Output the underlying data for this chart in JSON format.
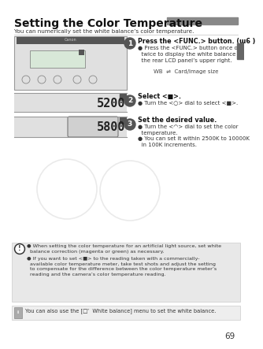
{
  "title": "Setting the Color Temperature",
  "subtitle": "You can numerically set the white balance’s color temperature.",
  "bg_color": "#ffffff",
  "page_number": "69",
  "step1_title": "Press the <FUNC.> button. (ɯ6 )",
  "step1_bullet": "Press the <FUNC.> button once or\ntwice to display the white balance on\nthe rear LCD panel’s upper right.",
  "step1_wb": "WB  ⇌  Card/Image size",
  "step2_display": "5200",
  "step2_title": "Select <■>.",
  "step2_bullet": "Turn the <○> dial to select <■>.",
  "step3_display": "5800",
  "step3_title": "Set the desired value.",
  "step3_bullet1": "Turn the <◠> dial to set the color\ntemperature.",
  "step3_bullet2": "You can set it within 2500K to 10000K\nin 100K increments.",
  "note1": "When setting the color temperature for an artificial light source, set white\nbalance correction (magenta or green) as necessary.",
  "note2": "If you want to set <■> to the reading taken with a commercially-\navailable color temperature meter, take test shots and adjust the setting\nto compensate for the difference between the color temperature meter’s\nreading and the camera’s color temperature reading.",
  "tip": "You can also use the [□ʳ  White balance] menu to set the white balance.",
  "gray_bar": "#888888",
  "step_circle": "#555555",
  "note_bg": "#e8e8e8",
  "tip_bg": "#e8e8e8",
  "lcd_bg": "#c8c8c8",
  "lcd_border": "#888888",
  "tab_color": "#666666"
}
